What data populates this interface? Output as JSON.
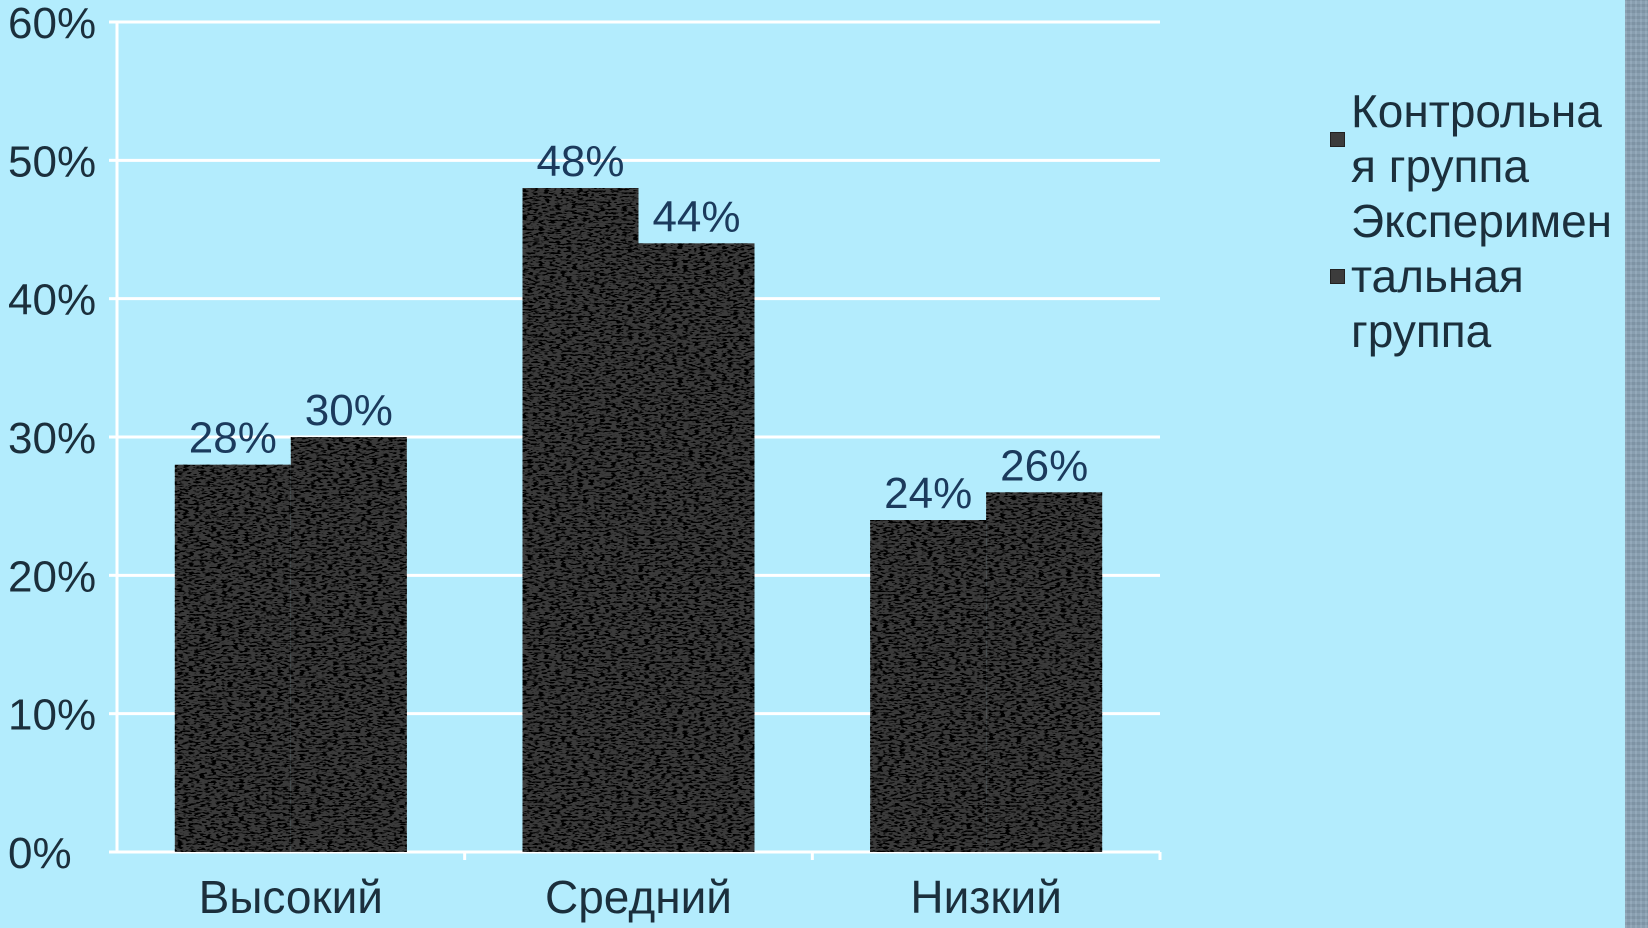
{
  "chart_data": {
    "type": "bar",
    "categories": [
      "Высокий",
      "Средний",
      "Низкий"
    ],
    "series": [
      {
        "name": "Контрольная группа",
        "legend_text": "Контрольна\nя группа",
        "values": [
          28,
          48,
          24
        ],
        "labels": [
          "28%",
          "48%",
          "24%"
        ]
      },
      {
        "name": "Экспериментальная группа",
        "legend_text": "Эксперимен\nтальная\nгруппа",
        "values": [
          30,
          44,
          26
        ],
        "labels": [
          "30%",
          "44%",
          "26%"
        ]
      }
    ],
    "ylim": [
      0,
      60
    ],
    "yticks": [
      "0%",
      "10%",
      "20%",
      "30%",
      "40%",
      "50%",
      "60%"
    ],
    "grid": true,
    "legend_position": "right",
    "bar_color": "#3b3b3b",
    "label_color": "#1b3a5c",
    "background_color": "#b3ecfd"
  }
}
